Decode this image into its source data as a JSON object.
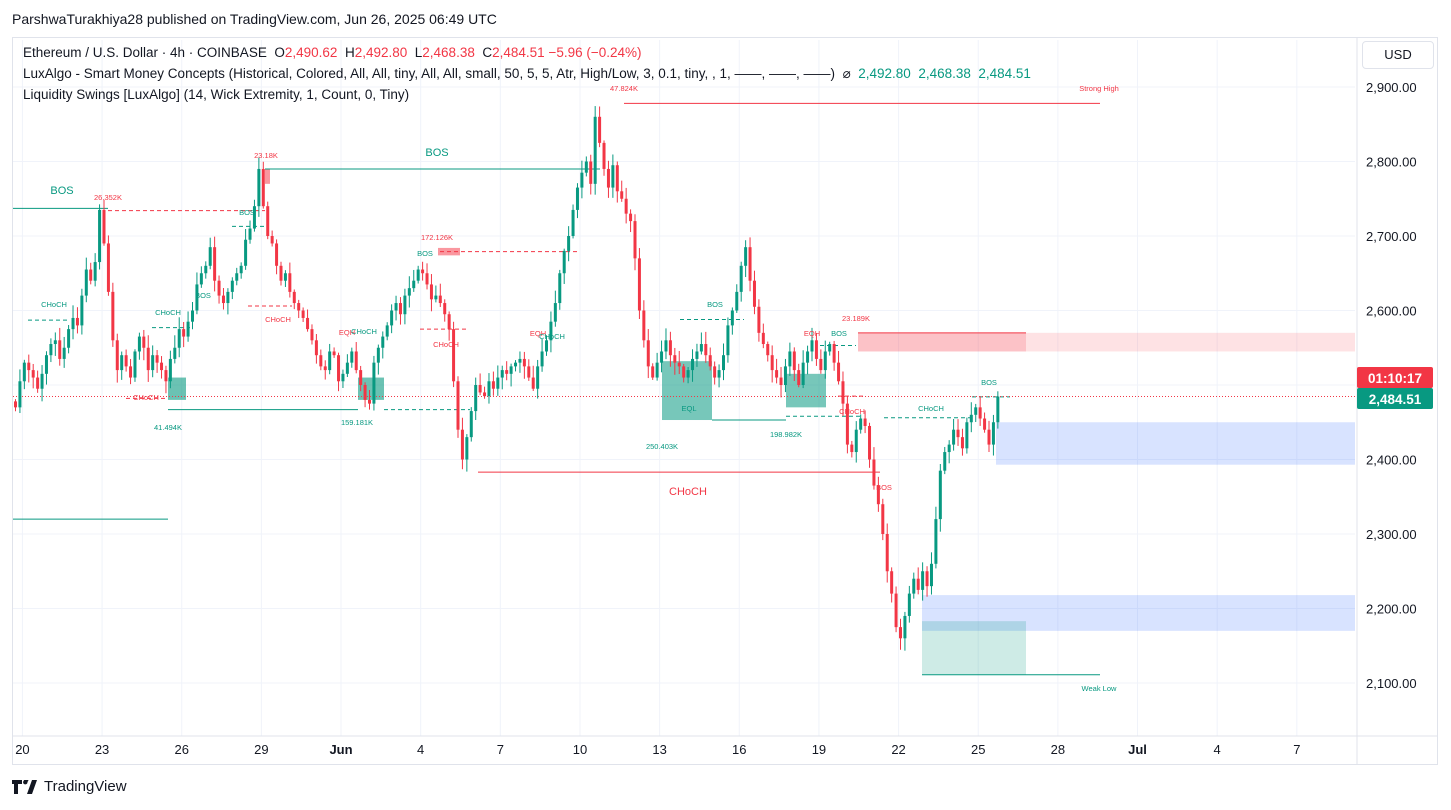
{
  "publish_line": "ParshwaTurakhiya28 published on TradingView.com, Jun 26, 2025 06:49 UTC",
  "legend": {
    "symbol": "Ethereum / U.S. Dollar · 4h · COINBASE",
    "o_label": "O",
    "o_value": "2,490.62",
    "h_label": "H",
    "h_value": "2,492.80",
    "l_label": "L",
    "l_value": "2,468.38",
    "c_label": "C",
    "c_value": "2,484.51",
    "change": "−5.96 (−0.24%)",
    "indicator1": "LuxAlgo - Smart Money Concepts (Historical, Colored, All, All, tiny, All, All, small, 50, 5, 5, Atr, High/Low, 3, 0.1, tiny, , 1, ——, ——, ——)",
    "indicator1_symbol": "⌀",
    "ind_v1": "2,492.80",
    "ind_v2": "2,468.38",
    "ind_v3": "2,484.51",
    "indicator2": "Liquidity Swings [LuxAlgo] (14, Wick Extremity, 1, Count, 0, Tiny)"
  },
  "currency_button": "USD",
  "brand": "TradingView",
  "colors": {
    "up": "#089981",
    "down": "#f23645",
    "bull_fvg": "#2962ff",
    "bear_ob": "#f7525f",
    "grid": "#f0f3fa"
  },
  "chart_data": {
    "type": "candlestick",
    "symbol": "ETHUSD",
    "timeframe": "4h",
    "ylim": [
      2050,
      2950
    ],
    "y_ticks": [
      "2,100.00",
      "2,200.00",
      "2,300.00",
      "2,400.00",
      "2,500.00",
      "2,600.00",
      "2,700.00",
      "2,800.00",
      "2,900.00"
    ],
    "y_tick_values": [
      2100,
      2200,
      2300,
      2400,
      2500,
      2600,
      2700,
      2800,
      2900
    ],
    "x_labels": [
      {
        "label": "20",
        "bar": 1,
        "bold": false
      },
      {
        "label": "23",
        "bar": 19,
        "bold": false
      },
      {
        "label": "26",
        "bar": 37,
        "bold": false
      },
      {
        "label": "29",
        "bar": 55,
        "bold": false
      },
      {
        "label": "Jun",
        "bar": 73,
        "bold": true
      },
      {
        "label": "4",
        "bar": 91,
        "bold": false
      },
      {
        "label": "7",
        "bar": 109,
        "bold": false
      },
      {
        "label": "10",
        "bar": 127,
        "bold": false
      },
      {
        "label": "13",
        "bar": 145,
        "bold": false
      },
      {
        "label": "16",
        "bar": 163,
        "bold": false
      },
      {
        "label": "19",
        "bar": 181,
        "bold": false
      },
      {
        "label": "22",
        "bar": 199,
        "bold": false
      },
      {
        "label": "25",
        "bar": 217,
        "bold": false
      },
      {
        "label": "28",
        "bar": 235,
        "bold": false
      },
      {
        "label": "Jul",
        "bar": 253,
        "bold": true
      },
      {
        "label": "4",
        "bar": 271,
        "bold": false
      },
      {
        "label": "7",
        "bar": 289,
        "bold": false
      }
    ],
    "closes": [
      2470,
      2505,
      2530,
      2520,
      2510,
      2495,
      2515,
      2540,
      2555,
      2560,
      2535,
      2550,
      2575,
      2590,
      2580,
      2620,
      2655,
      2640,
      2665,
      2735,
      2690,
      2625,
      2560,
      2520,
      2540,
      2525,
      2510,
      2545,
      2565,
      2550,
      2520,
      2540,
      2530,
      2520,
      2505,
      2535,
      2550,
      2575,
      2565,
      2585,
      2600,
      2635,
      2650,
      2660,
      2685,
      2640,
      2620,
      2610,
      2625,
      2640,
      2650,
      2660,
      2695,
      2710,
      2740,
      2790,
      2740,
      2700,
      2690,
      2660,
      2640,
      2650,
      2625,
      2610,
      2600,
      2590,
      2575,
      2560,
      2540,
      2525,
      2520,
      2545,
      2540,
      2505,
      2515,
      2530,
      2545,
      2520,
      2500,
      2480,
      2475,
      2530,
      2550,
      2565,
      2580,
      2600,
      2610,
      2595,
      2620,
      2630,
      2640,
      2655,
      2650,
      2635,
      2615,
      2620,
      2610,
      2595,
      2575,
      2505,
      2440,
      2400,
      2430,
      2465,
      2500,
      2490,
      2485,
      2505,
      2495,
      2510,
      2520,
      2515,
      2525,
      2530,
      2535,
      2525,
      2510,
      2495,
      2525,
      2545,
      2560,
      2585,
      2610,
      2650,
      2680,
      2700,
      2735,
      2765,
      2785,
      2800,
      2770,
      2860,
      2825,
      2790,
      2765,
      2795,
      2760,
      2750,
      2730,
      2720,
      2670,
      2600,
      2560,
      2525,
      2510,
      2530,
      2545,
      2560,
      2540,
      2530,
      2525,
      2510,
      2520,
      2535,
      2545,
      2555,
      2540,
      2525,
      2510,
      2520,
      2540,
      2580,
      2600,
      2625,
      2660,
      2685,
      2640,
      2605,
      2570,
      2555,
      2540,
      2520,
      2510,
      2500,
      2525,
      2545,
      2520,
      2500,
      2530,
      2545,
      2560,
      2535,
      2520,
      2545,
      2555,
      2530,
      2505,
      2475,
      2420,
      2410,
      2440,
      2455,
      2445,
      2400,
      2365,
      2340,
      2300,
      2250,
      2220,
      2175,
      2160,
      2190,
      2220,
      2240,
      2225,
      2250,
      2230,
      2260,
      2320,
      2385,
      2410,
      2420,
      2440,
      2430,
      2415,
      2450,
      2460,
      2470,
      2455,
      2440,
      2420,
      2450,
      2484.51
    ],
    "annotations": [
      {
        "text": "BOS",
        "kind": "bos"
      },
      {
        "text": "26.352K",
        "kind": "volume"
      },
      {
        "text": "23.18K",
        "kind": "volume"
      },
      {
        "text": "BOS",
        "kind": "bos"
      },
      {
        "text": "172.126K",
        "kind": "volume"
      },
      {
        "text": "47.824K",
        "kind": "volume"
      },
      {
        "text": "Strong High",
        "kind": "level"
      },
      {
        "text": "CHoCH",
        "kind": "choch"
      },
      {
        "text": "CHoCH",
        "kind": "choch"
      },
      {
        "text": "BOS",
        "kind": "bos"
      },
      {
        "text": "BOS",
        "kind": "bos"
      },
      {
        "text": "CHoCH",
        "kind": "choch"
      },
      {
        "text": "CHoCH",
        "kind": "choch"
      },
      {
        "text": "EQH",
        "kind": "eq"
      },
      {
        "text": "CHoCH",
        "kind": "choch"
      },
      {
        "text": "BOS",
        "kind": "bos"
      },
      {
        "text": "CHoCH",
        "kind": "choch"
      },
      {
        "text": "EQH",
        "kind": "eq"
      },
      {
        "text": "CHoCH",
        "kind": "choch"
      },
      {
        "text": "BOS",
        "kind": "bos"
      },
      {
        "text": "EQH",
        "kind": "eq"
      },
      {
        "text": "BOS",
        "kind": "bos"
      },
      {
        "text": "23.189K",
        "kind": "volume"
      },
      {
        "text": "CHoCH",
        "kind": "choch"
      },
      {
        "text": "CHoCH",
        "kind": "choch"
      },
      {
        "text": "BOS",
        "kind": "bos"
      },
      {
        "text": "41.494K",
        "kind": "volume"
      },
      {
        "text": "159.181K",
        "kind": "volume"
      },
      {
        "text": "EQL",
        "kind": "eq"
      },
      {
        "text": "250.403K",
        "kind": "volume"
      },
      {
        "text": "198.982K",
        "kind": "volume"
      },
      {
        "text": "CHoCH",
        "kind": "choch"
      },
      {
        "text": "BOS",
        "kind": "bos"
      },
      {
        "text": "Weak Low",
        "kind": "level"
      }
    ],
    "current_price_label": "2,484.51",
    "countdown_label": "01:10:17"
  }
}
